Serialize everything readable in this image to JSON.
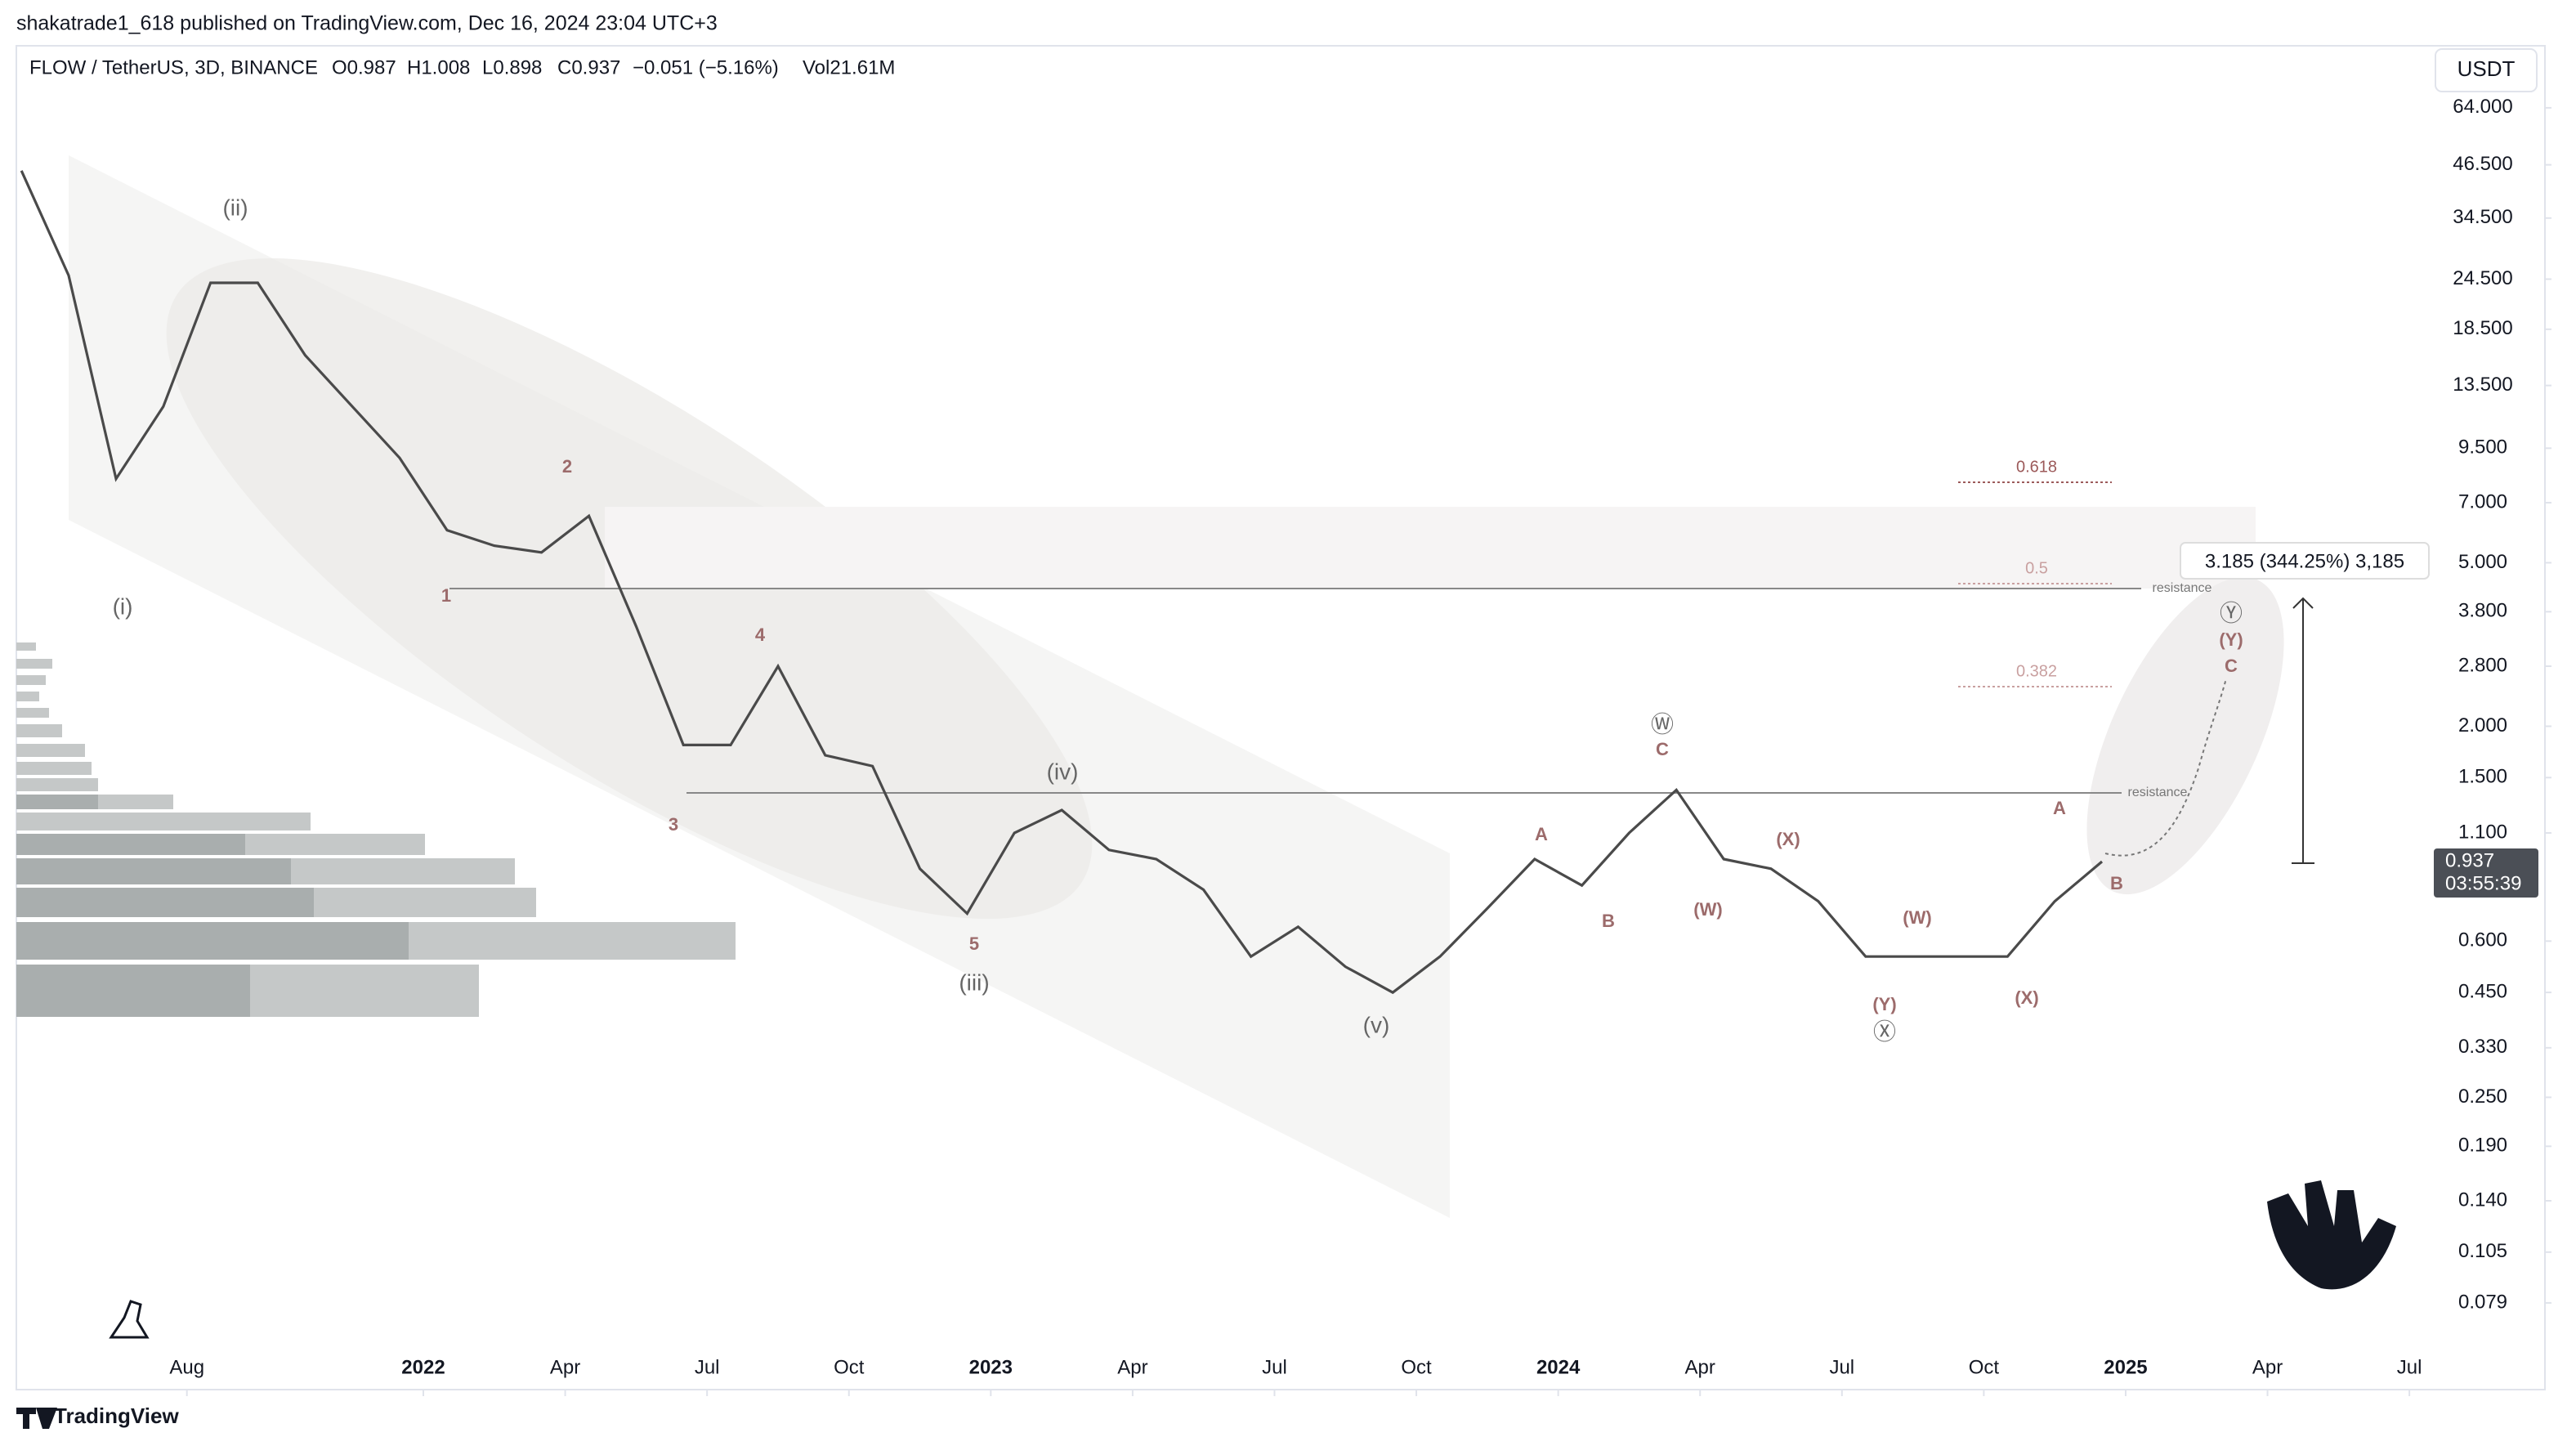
{
  "chart_data": {
    "type": "line",
    "header": "shakatrade1_618 published on TradingView.com, Dec 16, 2024 23:04 UTC+3",
    "symbol": "FLOW / TetherUS, 3D, BINANCE",
    "legend": [
      "O0.987",
      "H1.008",
      "L0.898",
      "C0.937",
      "−0.051 (−5.16%)",
      "Vol21.61M"
    ],
    "currency": "USDT",
    "last_price": "0.937",
    "countdown": "03:55:39",
    "measure_label": "3.185 (344.25%) 3,185",
    "fib_labels": [
      "0.618",
      "0.5",
      "0.382"
    ],
    "resistance_labels": [
      "resistance",
      "resistance"
    ],
    "brand": "TradingView",
    "annotations": [
      "(i)",
      "(ii)",
      "(iii)",
      "(iv)",
      "(v)",
      "1",
      "2",
      "3",
      "4",
      "5",
      "A",
      "B",
      "C",
      "Ⓦ",
      "(W)",
      "(X)",
      "(Y)",
      "Ⓧ",
      "(W)",
      "(X)",
      "A",
      "B",
      "C",
      "(Y)",
      "Ⓨ"
    ],
    "log_scale": true,
    "color": "#4a4a4a",
    "x": [
      "2021-04",
      "2021-05",
      "2021-06",
      "2021-07",
      "2021-08",
      "2021-09",
      "2021-10",
      "2021-11",
      "2021-12",
      "2022-01",
      "2022-02",
      "2022-03",
      "2022-04",
      "2022-05",
      "2022-06",
      "2022-07",
      "2022-08",
      "2022-09",
      "2022-10",
      "2022-11",
      "2022-12",
      "2023-01",
      "2023-02",
      "2023-03",
      "2023-04",
      "2023-05",
      "2023-06",
      "2023-07",
      "2023-08",
      "2023-09",
      "2023-10",
      "2023-11",
      "2023-12",
      "2024-01",
      "2024-02",
      "2024-03",
      "2024-04",
      "2024-05",
      "2024-06",
      "2024-07",
      "2024-08",
      "2024-09",
      "2024-10",
      "2024-11",
      "2024-12"
    ],
    "values": [
      45,
      25,
      8,
      12,
      24,
      24,
      16,
      12,
      9,
      6,
      5.5,
      5.3,
      6.5,
      3.5,
      1.8,
      1.8,
      2.8,
      1.7,
      1.6,
      0.9,
      0.7,
      1.1,
      1.25,
      1.0,
      0.95,
      0.8,
      0.55,
      0.65,
      0.52,
      0.45,
      0.55,
      0.72,
      0.95,
      0.82,
      1.1,
      1.4,
      0.95,
      0.9,
      0.75,
      0.55,
      0.55,
      0.55,
      0.55,
      0.75,
      0.937
    ],
    "ylim": [
      0.0611,
      90.6
    ],
    "yticks": [
      {
        "value": 64,
        "label": "64.000"
      },
      {
        "value": 46.5,
        "label": "46.500"
      },
      {
        "value": 34.5,
        "label": "34.500"
      },
      {
        "value": 24.5,
        "label": "24.500"
      },
      {
        "value": 18.5,
        "label": "18.500"
      },
      {
        "value": 13.5,
        "label": "13.500"
      },
      {
        "value": 9.5,
        "label": "9.500"
      },
      {
        "value": 7,
        "label": "7.000"
      },
      {
        "value": 5,
        "label": "5.000"
      },
      {
        "value": 3.8,
        "label": "3.800"
      },
      {
        "value": 2.8,
        "label": "2.800"
      },
      {
        "value": 2,
        "label": "2.000"
      },
      {
        "value": 1.5,
        "label": "1.500"
      },
      {
        "value": 1.1,
        "label": "1.100"
      },
      {
        "value": 0.6,
        "label": "0.600"
      },
      {
        "value": 0.45,
        "label": "0.450"
      },
      {
        "value": 0.33,
        "label": "0.330"
      },
      {
        "value": 0.25,
        "label": "0.250"
      },
      {
        "value": 0.19,
        "label": "0.190"
      },
      {
        "value": 0.14,
        "label": "0.140"
      },
      {
        "value": 0.105,
        "label": "0.105"
      },
      {
        "value": 0.079,
        "label": "0.079"
      }
    ],
    "xticks": [
      {
        "value": "2021-08",
        "label": "Aug"
      },
      {
        "value": "2022-01",
        "label": "2022"
      },
      {
        "value": "2022-04",
        "label": "Apr"
      },
      {
        "value": "2022-07",
        "label": "Jul"
      },
      {
        "value": "2022-10",
        "label": "Oct"
      },
      {
        "value": "2023-01",
        "label": "2023"
      },
      {
        "value": "2023-04",
        "label": "Apr"
      },
      {
        "value": "2023-07",
        "label": "Jul"
      },
      {
        "value": "2023-10",
        "label": "Oct"
      },
      {
        "value": "2024-01",
        "label": "2024"
      },
      {
        "value": "2024-04",
        "label": "Apr"
      },
      {
        "value": "2024-07",
        "label": "Jul"
      },
      {
        "value": "2024-10",
        "label": "Oct"
      },
      {
        "value": "2025-01",
        "label": "2025"
      },
      {
        "value": "2025-04",
        "label": "Apr"
      },
      {
        "value": "2025-07",
        "label": "Jul"
      }
    ]
  }
}
